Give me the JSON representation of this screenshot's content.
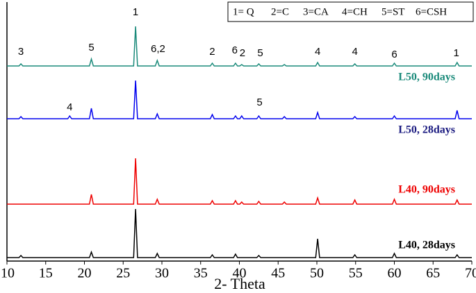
{
  "chart_data": {
    "type": "line",
    "x_label": "2- Theta",
    "xlim": [
      10,
      70
    ],
    "xticks": [
      10,
      15,
      20,
      25,
      30,
      35,
      40,
      45,
      50,
      55,
      60,
      65,
      70
    ],
    "ylim": [
      0,
      373
    ],
    "key": [
      "1= Q",
      "2=C",
      "3=CA",
      "4=CH",
      "5=ST",
      "6=CSH"
    ],
    "series": [
      {
        "name": "L50, 90days",
        "color": "#1a8a7a",
        "label_color": "#1a8a7a",
        "x": [
          10,
          11.55,
          11.8,
          12.05,
          20.65,
          20.9,
          21.15,
          26.35,
          26.6,
          26.85,
          29.15,
          29.4,
          29.65,
          36.25,
          36.5,
          36.75,
          39.25,
          39.5,
          39.75,
          40.05,
          40.3,
          40.55,
          42.25,
          42.5,
          42.75,
          45.55,
          45.8,
          46.05,
          49.85,
          50.1,
          50.35,
          54.65,
          54.9,
          55.15,
          59.75,
          60,
          60.25,
          67.85,
          68.1,
          68.35,
          70
        ],
        "values": [
          281,
          281,
          284,
          281,
          281,
          291,
          281,
          281,
          338,
          281,
          281,
          289,
          281,
          281,
          285,
          281,
          281,
          285,
          281,
          281,
          283,
          281,
          281,
          284,
          281,
          281,
          283,
          281,
          281,
          286,
          281,
          281,
          284,
          281,
          281,
          285,
          281,
          281,
          286,
          281,
          281
        ]
      },
      {
        "name": "L50, 28days",
        "color": "#0000ee",
        "label_color": "#1a1a80",
        "x": [
          10,
          11.55,
          11.8,
          12.05,
          17.85,
          18.1,
          18.35,
          20.65,
          20.9,
          21.15,
          26.35,
          26.6,
          26.85,
          29.15,
          29.4,
          29.65,
          36.25,
          36.5,
          36.75,
          39.25,
          39.5,
          39.75,
          40.05,
          40.3,
          40.55,
          42.25,
          42.5,
          42.75,
          45.55,
          45.8,
          46.05,
          49.85,
          50.1,
          50.35,
          54.65,
          54.9,
          55.15,
          59.75,
          60,
          60.25,
          67.85,
          68.1,
          68.35,
          70
        ],
        "values": [
          205,
          205,
          208,
          205,
          205,
          209,
          205,
          205,
          220,
          205,
          205,
          260,
          205,
          205,
          212,
          205,
          205,
          211,
          205,
          205,
          209,
          205,
          205,
          209,
          205,
          205,
          209,
          205,
          205,
          208,
          205,
          205,
          214,
          205,
          205,
          208,
          205,
          205,
          209,
          205,
          205,
          217,
          205,
          205
        ]
      },
      {
        "name": "L40, 90days",
        "color": "#ee0000",
        "label_color": "#ee0000",
        "x": [
          10,
          20.65,
          20.9,
          21.15,
          26.35,
          26.6,
          26.85,
          29.15,
          29.4,
          29.65,
          36.25,
          36.5,
          36.75,
          39.25,
          39.5,
          39.75,
          40.05,
          40.3,
          40.55,
          42.25,
          42.5,
          42.75,
          45.55,
          45.8,
          46.05,
          49.85,
          50.1,
          50.35,
          54.65,
          54.9,
          55.15,
          59.75,
          60,
          60.25,
          67.85,
          68.1,
          68.35,
          70
        ],
        "values": [
          82,
          82,
          96,
          82,
          82,
          148,
          82,
          82,
          89,
          82,
          82,
          87,
          82,
          82,
          87,
          82,
          82,
          85,
          82,
          82,
          86,
          82,
          82,
          85,
          82,
          82,
          91,
          82,
          82,
          88,
          82,
          82,
          89,
          82,
          82,
          88,
          82,
          82
        ]
      },
      {
        "name": "L40, 28days",
        "color": "#000000",
        "label_color": "#000000",
        "x": [
          10,
          11.55,
          11.8,
          12.05,
          20.65,
          20.9,
          21.15,
          26.35,
          26.6,
          26.85,
          29.15,
          29.4,
          29.65,
          36.25,
          36.5,
          36.75,
          39.25,
          39.5,
          39.75,
          42.25,
          42.5,
          42.75,
          49.85,
          50.1,
          50.35,
          54.65,
          54.9,
          55.15,
          59.75,
          60,
          60.25,
          67.85,
          68.1,
          68.35,
          70
        ],
        "values": [
          5,
          5,
          8,
          5,
          5,
          13,
          5,
          5,
          75,
          5,
          5,
          11,
          5,
          5,
          9,
          5,
          5,
          10,
          5,
          5,
          8,
          5,
          5,
          32,
          5,
          5,
          9,
          5,
          5,
          11,
          5,
          5,
          9,
          5,
          5
        ]
      }
    ],
    "annotations": [
      {
        "text": "3",
        "x": 11.8,
        "y": 301
      },
      {
        "text": "5",
        "x": 20.9,
        "y": 307
      },
      {
        "text": "1",
        "x": 26.6,
        "y": 358
      },
      {
        "text": "6,2",
        "x": 29.5,
        "y": 305
      },
      {
        "text": "2",
        "x": 36.5,
        "y": 301
      },
      {
        "text": "6",
        "x": 39.4,
        "y": 303
      },
      {
        "text": "2",
        "x": 40.4,
        "y": 299
      },
      {
        "text": "5",
        "x": 42.7,
        "y": 299
      },
      {
        "text": "4",
        "x": 50.1,
        "y": 301
      },
      {
        "text": "4",
        "x": 54.9,
        "y": 301
      },
      {
        "text": "6",
        "x": 60,
        "y": 297
      },
      {
        "text": "1",
        "x": 68,
        "y": 299
      },
      {
        "text": "4",
        "x": 18.1,
        "y": 221
      },
      {
        "text": "5",
        "x": 42.6,
        "y": 228
      }
    ]
  }
}
